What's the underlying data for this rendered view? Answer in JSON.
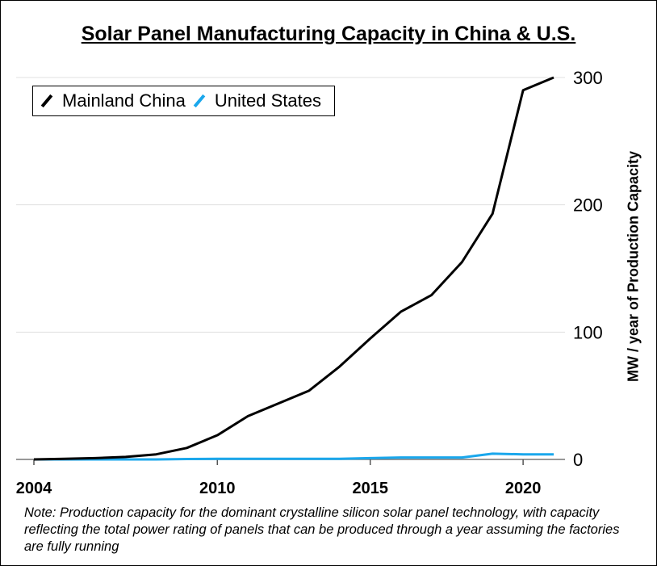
{
  "chart_data": {
    "type": "line",
    "title": "Solar Panel Manufacturing Capacity in China & U.S.",
    "xlabel": "",
    "ylabel": "MW / year of Production Capacity",
    "x": [
      2004,
      2005,
      2006,
      2007,
      2008,
      2009,
      2010,
      2011,
      2012,
      2013,
      2014,
      2015,
      2016,
      2017,
      2018,
      2019,
      2020,
      2021
    ],
    "xlim": [
      2004,
      2021
    ],
    "ylim": [
      0,
      300
    ],
    "x_ticks": [
      "2004",
      "2010",
      "2015",
      "2020"
    ],
    "x_tick_values": [
      2004,
      2010,
      2015,
      2020
    ],
    "y_ticks": [
      "0",
      "100",
      "200",
      "300"
    ],
    "y_tick_values": [
      0,
      100,
      200,
      300
    ],
    "grid": "horizontal",
    "legend_position": "top-left",
    "series": [
      {
        "name": "Mainland China",
        "color": "#000000",
        "values": [
          0,
          0.5,
          1,
          2,
          4,
          9,
          19,
          34,
          44,
          54,
          73,
          95,
          116,
          129,
          155,
          193,
          290,
          300
        ]
      },
      {
        "name": "United States",
        "color": "#1aa7ec",
        "values": [
          0,
          0,
          0,
          0,
          0,
          0.3,
          0.5,
          0.5,
          0.5,
          0.5,
          0.5,
          1,
          1.5,
          1.5,
          1.5,
          4.5,
          4,
          4
        ]
      }
    ],
    "note": "Note: Production capacity for the dominant crystalline silicon solar panel technology, with capacity reflecting the total power rating of panels that can be produced through a year assuming the factories are fully running"
  }
}
